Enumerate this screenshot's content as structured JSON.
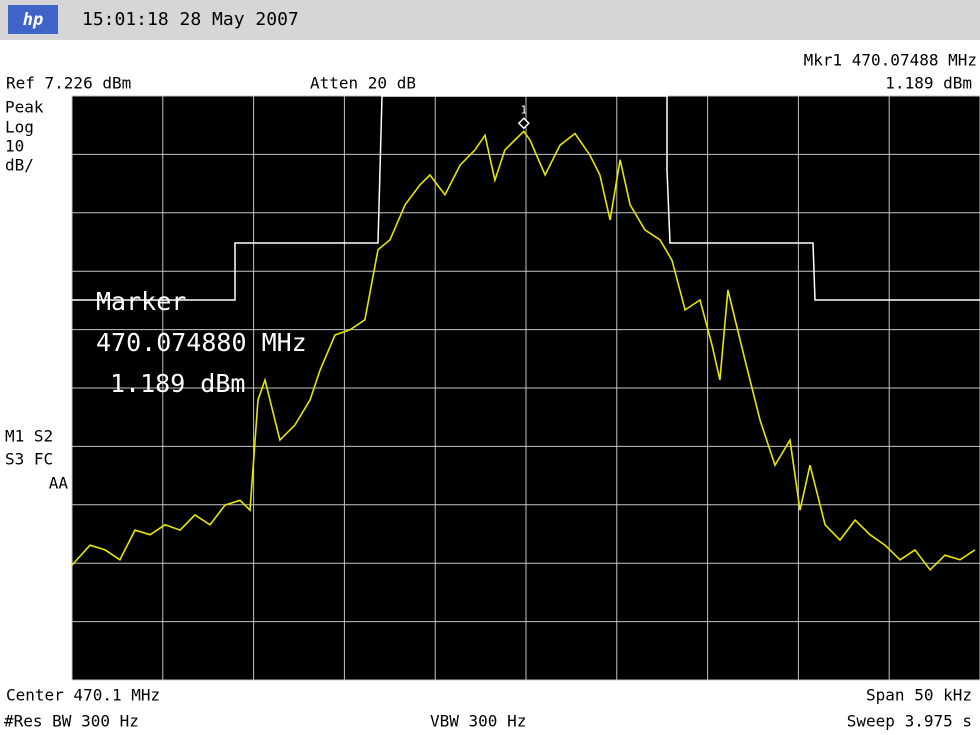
{
  "header": {
    "timestamp": "15:01:18  28 May 2007"
  },
  "settings": {
    "marker_readout": "Mkr1  470.07488 MHz",
    "marker_level": "1.189 dBm",
    "ref_level": "Ref 7.226 dBm",
    "attenuation": "Atten 20 dB",
    "detector": "Peak",
    "scale_type": "Log",
    "scale_per_div": "10",
    "scale_unit": "dB/",
    "status_1": "M1 S2",
    "status_2": "S3 FC",
    "status_3": "AA"
  },
  "marker": {
    "title": "Marker",
    "frequency": "470.074880 MHz",
    "level": "1.189 dBm",
    "x": 470.07488,
    "value": 1.189,
    "number": "1"
  },
  "footer": {
    "center": "Center 470.1 MHz",
    "span": "Span 50 kHz",
    "res_bw": "#Res BW 300 Hz",
    "vbw": "VBW 300 Hz",
    "sweep": "Sweep 3.975 s"
  },
  "trace": {
    "type": "line",
    "color": "#e6e600",
    "xlim": [
      470.05,
      470.1
    ],
    "ylim": [
      -92.774,
      7.226
    ],
    "x": [
      470.05,
      470.05099,
      470.05182,
      470.05264,
      470.05347,
      470.0543,
      470.05512,
      470.05595,
      470.05677,
      470.0576,
      470.05843,
      470.05925,
      470.0598,
      470.06024,
      470.06063,
      470.06145,
      470.06228,
      470.06311,
      470.06366,
      470.06448,
      470.06531,
      470.06613,
      470.06685,
      470.06751,
      470.06834,
      470.06916,
      470.06971,
      470.07054,
      470.07137,
      470.07219,
      470.07274,
      470.07329,
      470.07384,
      470.07439,
      470.07488,
      470.07522,
      470.07605,
      470.07687,
      470.0777,
      470.07852,
      470.07907,
      470.07963,
      470.08018,
      470.08073,
      470.08155,
      470.08238,
      470.08304,
      470.08376,
      470.08458,
      470.08524,
      470.08568,
      470.08612,
      470.08706,
      470.08789,
      470.08871,
      470.08954,
      470.09009,
      470.09064,
      470.09147,
      470.09229,
      470.09312,
      470.09394,
      470.09477,
      470.0956,
      470.09642,
      470.09725,
      470.09807,
      470.0989,
      470.09972
    ],
    "values": [
      -73.1,
      -69.7,
      -70.5,
      -72.2,
      -67.1,
      -67.9,
      -66.2,
      -67.1,
      -64.5,
      -66.2,
      -62.8,
      -62.0,
      -63.7,
      -44.8,
      -41.4,
      -51.7,
      -49.1,
      -44.8,
      -39.7,
      -33.7,
      -32.8,
      -31.1,
      -19.1,
      -17.4,
      -11.4,
      -8.0,
      -6.3,
      -9.7,
      -4.6,
      -2.0,
      0.5,
      -7.2,
      -2.0,
      -0.3,
      1.189,
      -0.3,
      -6.3,
      -1.2,
      0.8,
      -2.9,
      -6.3,
      -14.0,
      -3.7,
      -11.4,
      -15.7,
      -17.4,
      -20.9,
      -29.4,
      -27.7,
      -35.4,
      -41.4,
      -26.0,
      -38.0,
      -48.3,
      -56.0,
      -51.7,
      -63.7,
      -56.0,
      -66.2,
      -68.8,
      -65.4,
      -67.9,
      -69.7,
      -72.2,
      -70.5,
      -73.9,
      -71.4,
      -72.2,
      -70.5
    ]
  }
}
